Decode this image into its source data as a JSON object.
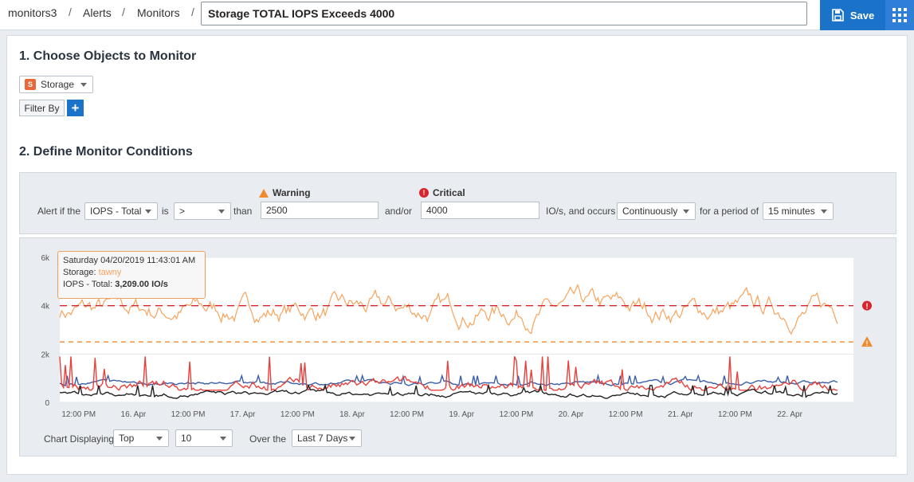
{
  "breadcrumb": {
    "items": [
      "monitors3",
      "Alerts",
      "Monitors"
    ],
    "separator": "/"
  },
  "monitor_name": "Storage TOTAL IOPS Exceeds 4000",
  "toolbar": {
    "save_label": "Save"
  },
  "section1": {
    "title": "1. Choose Objects to Monitor",
    "object_type": "Storage",
    "object_badge": "S",
    "filter_label": "Filter By",
    "add_label": "+"
  },
  "section2": {
    "title": "2. Define Monitor Conditions",
    "alert_if": "Alert if the",
    "metric": "IOPS - Total",
    "is_label": "is",
    "operator": ">",
    "than_label": "than",
    "warning_label": "Warning",
    "warning_value": "2500",
    "andor_label": "and/or",
    "critical_label": "Critical",
    "critical_value": "4000",
    "occurs_label": "IO/s, and occurs",
    "occurrence": "Continuously",
    "period_label": "for a period of",
    "period": "15 minutes"
  },
  "chart_controls": {
    "displaying_label": "Chart Displaying",
    "top_option": "Top",
    "count_option": "10",
    "over_label": "Over the",
    "range_option": "Last 7 Days"
  },
  "tooltip": {
    "date": "Saturday 04/20/2019 11:43:01 AM",
    "storage_label": "Storage:",
    "storage_name": "tawny",
    "metric_label": "IOPS - Total:",
    "metric_value": "3,209.00 IO/s"
  },
  "colors": {
    "accent": "#1a73c8",
    "warning": "#f08a2c",
    "critical": "#d9232d",
    "series_orange": "#f7a35c",
    "series_red": "#e8403a",
    "series_blue": "#3a5fa8",
    "series_black": "#222222"
  },
  "chart_data": {
    "type": "line",
    "yticks": [
      "0",
      "2k",
      "4k",
      "6k"
    ],
    "ylim": [
      0,
      6000
    ],
    "xticks": [
      "12:00 PM",
      "16. Apr",
      "12:00 PM",
      "17. Apr",
      "12:00 PM",
      "18. Apr",
      "12:00 PM",
      "19. Apr",
      "12:00 PM",
      "20. Apr",
      "12:00 PM",
      "21. Apr",
      "12:00 PM",
      "22. Apr"
    ],
    "thresholds": {
      "critical": 4000,
      "warning": 2500
    },
    "series": [
      {
        "color": "#f7a35c",
        "approx_level": 3800,
        "approx_range": [
          2700,
          5700
        ]
      },
      {
        "color": "#3a5fa8",
        "approx_level": 800,
        "approx_range": [
          600,
          1100
        ]
      },
      {
        "color": "#e8403a",
        "approx_level": 650,
        "approx_range": [
          500,
          1900
        ]
      },
      {
        "color": "#222222",
        "approx_level": 350,
        "approx_range": [
          100,
          700
        ]
      }
    ]
  }
}
